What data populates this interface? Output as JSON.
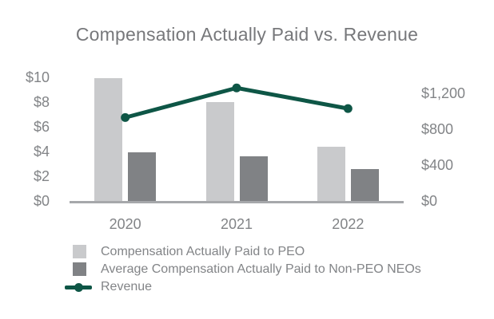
{
  "title": "Compensation Actually Paid vs. Revenue",
  "colors": {
    "peo_bar": "#c9cacc",
    "non_peo_bar": "#808285",
    "revenue_line": "#0e5646",
    "axis_line": "#a6a8ab",
    "title_text": "#77787b",
    "label_text": "#828487"
  },
  "chart_data": {
    "type": "combo-bar-line",
    "title": "Compensation Actually Paid vs. Revenue",
    "categories": [
      "2020",
      "2021",
      "2022"
    ],
    "series": [
      {
        "name": "Compensation Actually Paid to PEO",
        "type": "bar",
        "axis": "left",
        "color": "#c9cacc",
        "values": [
          9.9,
          8.0,
          4.4
        ]
      },
      {
        "name": "Average Compensation Actually Paid to Non-PEO NEOs",
        "type": "bar",
        "axis": "left",
        "color": "#808285",
        "values": [
          3.9,
          3.6,
          2.6
        ]
      },
      {
        "name": "Revenue",
        "type": "line",
        "axis": "right",
        "color": "#0e5646",
        "values": [
          930,
          1260,
          1030
        ]
      }
    ],
    "left_axis": {
      "ylim": [
        0,
        10
      ],
      "ticks": [
        {
          "label": "$10",
          "value": 10
        },
        {
          "label": "$8",
          "value": 8
        },
        {
          "label": "$6",
          "value": 6
        },
        {
          "label": "$4",
          "value": 4
        },
        {
          "label": "$2",
          "value": 2
        },
        {
          "label": "$0",
          "value": 0
        }
      ]
    },
    "right_axis": {
      "ylim": [
        0,
        1200
      ],
      "ticks": [
        {
          "label": "$1,200",
          "value": 1200
        },
        {
          "label": "$800",
          "value": 800
        },
        {
          "label": "$400",
          "value": 400
        },
        {
          "label": "$0",
          "value": 0
        }
      ]
    },
    "grid": false,
    "legend_position": "bottom-left"
  },
  "legend": {
    "items": [
      {
        "label": "Compensation Actually Paid to PEO",
        "marker": "square",
        "color": "#c9cacc"
      },
      {
        "label": "Average Compensation Actually Paid to Non-PEO NEOs",
        "marker": "square",
        "color": "#808285"
      },
      {
        "label": "Revenue",
        "marker": "line-dot",
        "color": "#0e5646"
      }
    ]
  }
}
